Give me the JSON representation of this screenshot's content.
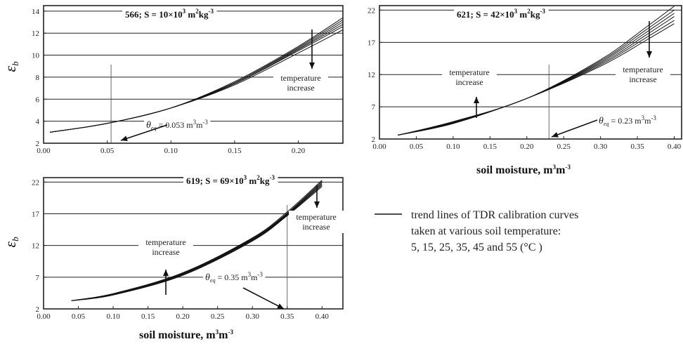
{
  "chart_data": [
    {
      "type": "line",
      "id": "p566",
      "title_prefix": "566; S = 10×10",
      "title_exp": "3",
      "title_unit": " m",
      "title_unit_exp": "2",
      "title_unit2": "kg",
      "title_unit2_exp": "-3",
      "ylabel": "ε",
      "ylabel_sub": "b",
      "xlabel": "",
      "xlim": [
        0.0,
        0.235
      ],
      "ylim": [
        2,
        14.5
      ],
      "xticks": [
        0.0,
        0.05,
        0.1,
        0.15,
        0.2
      ],
      "xtick_labels": [
        "0.00",
        "0.05",
        "0.10",
        "0.15",
        "0.20"
      ],
      "yticks": [
        2,
        4,
        6,
        8,
        10,
        12,
        14
      ],
      "ytick_labels": [
        "2",
        "4",
        "6",
        "8",
        "10",
        "12",
        "14"
      ],
      "grid": "horizontal",
      "theta_eq": 0.053,
      "theta_eq_label": "= 0.053 m",
      "theta_eq_unit_exp": "3",
      "theta_eq_unit2": "m",
      "theta_eq_unit2_exp": "-3",
      "annotation": [
        "temperature",
        "increase"
      ],
      "series": [
        {
          "x": [
            0.005,
            0.05,
            0.1,
            0.15,
            0.2,
            0.235
          ],
          "y": [
            3.0,
            3.8,
            5.2,
            7.3,
            10.2,
            12.3
          ]
        },
        {
          "x": [
            0.005,
            0.05,
            0.1,
            0.15,
            0.2,
            0.235
          ],
          "y": [
            3.0,
            3.8,
            5.2,
            7.4,
            10.4,
            12.6
          ]
        },
        {
          "x": [
            0.005,
            0.05,
            0.1,
            0.15,
            0.2,
            0.235
          ],
          "y": [
            3.0,
            3.8,
            5.2,
            7.4,
            10.5,
            12.8
          ]
        },
        {
          "x": [
            0.005,
            0.05,
            0.1,
            0.15,
            0.2,
            0.235
          ],
          "y": [
            3.0,
            3.8,
            5.2,
            7.5,
            10.6,
            13.0
          ]
        },
        {
          "x": [
            0.005,
            0.05,
            0.1,
            0.15,
            0.2,
            0.235
          ],
          "y": [
            3.0,
            3.8,
            5.2,
            7.5,
            10.7,
            13.2
          ]
        },
        {
          "x": [
            0.005,
            0.05,
            0.1,
            0.15,
            0.2,
            0.235
          ],
          "y": [
            3.0,
            3.8,
            5.2,
            7.6,
            10.8,
            13.4
          ]
        }
      ]
    },
    {
      "type": "line",
      "id": "p621",
      "title_prefix": "621; S = 42×10",
      "title_exp": "3",
      "title_unit": " m",
      "title_unit_exp": "2",
      "title_unit2": "kg",
      "title_unit2_exp": "-3",
      "ylabel": "",
      "ylabel_sub": "",
      "xlabel": "soil moisture, m",
      "xlabel_exp": "3",
      "xlabel_unit2": "m",
      "xlabel_unit2_exp": "-3",
      "xlim": [
        0.0,
        0.41
      ],
      "ylim": [
        2,
        22.7
      ],
      "xticks": [
        0.0,
        0.05,
        0.1,
        0.15,
        0.2,
        0.25,
        0.3,
        0.35,
        0.4
      ],
      "xtick_labels": [
        "0.00",
        "0.05",
        "0.10",
        "0.15",
        "0.20",
        "0.25",
        "0.30",
        "0.35",
        "0.40"
      ],
      "yticks": [
        2,
        7,
        12,
        17,
        22
      ],
      "ytick_labels": [
        "2",
        "7",
        "12",
        "17",
        "22"
      ],
      "grid": "horizontal",
      "theta_eq": 0.23,
      "theta_eq_label": "= 0.23 m",
      "theta_eq_unit_exp": "3",
      "theta_eq_unit2": "m",
      "theta_eq_unit2_exp": "-3",
      "annotation": [
        "temperature",
        "increase"
      ],
      "annotation2": [
        "temperature",
        "increase"
      ],
      "series": [
        {
          "x": [
            0.025,
            0.1,
            0.2,
            0.3,
            0.36,
            0.4
          ],
          "y": [
            2.6,
            4.4,
            8.3,
            13.3,
            17.2,
            19.9
          ]
        },
        {
          "x": [
            0.025,
            0.1,
            0.2,
            0.3,
            0.36,
            0.4
          ],
          "y": [
            2.6,
            4.5,
            8.3,
            13.5,
            17.6,
            20.4
          ]
        },
        {
          "x": [
            0.025,
            0.1,
            0.2,
            0.3,
            0.36,
            0.4
          ],
          "y": [
            2.6,
            4.5,
            8.3,
            13.7,
            18.0,
            21.0
          ]
        },
        {
          "x": [
            0.025,
            0.1,
            0.2,
            0.3,
            0.36,
            0.4
          ],
          "y": [
            2.6,
            4.6,
            8.3,
            13.9,
            18.4,
            21.5
          ]
        },
        {
          "x": [
            0.025,
            0.1,
            0.2,
            0.3,
            0.36,
            0.4
          ],
          "y": [
            2.6,
            4.6,
            8.3,
            14.1,
            18.8,
            22.0
          ]
        },
        {
          "x": [
            0.025,
            0.1,
            0.2,
            0.3,
            0.36,
            0.4
          ],
          "y": [
            2.6,
            4.7,
            8.3,
            14.3,
            19.2,
            22.6
          ]
        }
      ]
    },
    {
      "type": "line",
      "id": "p619",
      "title_prefix": "619; S = 69×10",
      "title_exp": "3",
      "title_unit": " m",
      "title_unit_exp": "2",
      "title_unit2": "kg",
      "title_unit2_exp": "-3",
      "ylabel": "ε",
      "ylabel_sub": "b",
      "xlabel": "soil moisture, m",
      "xlabel_exp": "3",
      "xlabel_unit2": "m",
      "xlabel_unit2_exp": "-3",
      "xlim": [
        0.0,
        0.43
      ],
      "ylim": [
        2,
        22.7
      ],
      "xticks": [
        0.0,
        0.05,
        0.1,
        0.15,
        0.2,
        0.25,
        0.3,
        0.35,
        0.4
      ],
      "xtick_labels": [
        "0.00",
        "0.05",
        "0.10",
        "0.15",
        "0.20",
        "0.25",
        "0.30",
        "0.35",
        "0.40"
      ],
      "yticks": [
        2,
        7,
        12,
        17,
        22
      ],
      "ytick_labels": [
        "2",
        "7",
        "12",
        "17",
        "22"
      ],
      "grid": "horizontal",
      "theta_eq": 0.35,
      "theta_eq_label": "= 0.35 m",
      "theta_eq_unit_exp": "3",
      "theta_eq_unit2": "m",
      "theta_eq_unit2_exp": "-3",
      "annotation": [
        "temperature",
        "increase"
      ],
      "annotation2": [
        "temperature",
        "increase"
      ],
      "series": [
        {
          "x": [
            0.04,
            0.1,
            0.2,
            0.3,
            0.35,
            0.4
          ],
          "y": [
            3.3,
            4.2,
            7.3,
            12.7,
            16.7,
            21.3
          ]
        },
        {
          "x": [
            0.04,
            0.1,
            0.2,
            0.3,
            0.35,
            0.4
          ],
          "y": [
            3.3,
            4.2,
            7.4,
            12.8,
            16.8,
            21.5
          ]
        },
        {
          "x": [
            0.04,
            0.1,
            0.2,
            0.3,
            0.35,
            0.4
          ],
          "y": [
            3.3,
            4.3,
            7.5,
            12.9,
            16.9,
            21.7
          ]
        },
        {
          "x": [
            0.04,
            0.1,
            0.2,
            0.3,
            0.35,
            0.4
          ],
          "y": [
            3.3,
            4.3,
            7.5,
            13.0,
            17.0,
            21.9
          ]
        },
        {
          "x": [
            0.04,
            0.1,
            0.2,
            0.3,
            0.35,
            0.4
          ],
          "y": [
            3.3,
            4.4,
            7.6,
            13.1,
            17.1,
            22.1
          ]
        },
        {
          "x": [
            0.04,
            0.1,
            0.2,
            0.3,
            0.35,
            0.4
          ],
          "y": [
            3.3,
            4.4,
            7.7,
            13.2,
            17.3,
            22.3
          ]
        }
      ]
    }
  ],
  "legend": {
    "lines": [
      "trend lines of TDR calibration curves",
      "taken at various soil temperature:",
      "5, 15, 25, 35, 45 and 55 (°C )"
    ]
  }
}
